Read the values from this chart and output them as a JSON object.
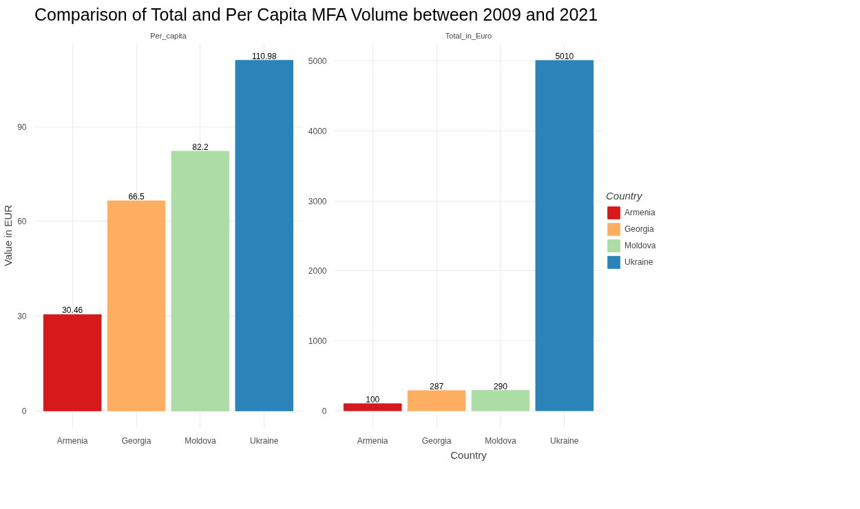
{
  "chart_data": [
    {
      "type": "bar",
      "title": "Comparison of Total and Per Capita MFA Volume between 2009 and 2021",
      "subtitle": "Per_capita",
      "ylabel": "Value in EUR",
      "categories": [
        "Armenia",
        "Georgia",
        "Moldova",
        "Ukraine"
      ],
      "series": [
        {
          "color": "#d7191c",
          "values": [
            30.46,
            null,
            null,
            null
          ]
        },
        {
          "color": "#fdae61",
          "values": [
            null,
            66.5,
            null,
            null
          ]
        },
        {
          "color": "#abdda4",
          "values": [
            null,
            null,
            82.2,
            null
          ]
        },
        {
          "color": "#2b83ba",
          "values": [
            null,
            null,
            null,
            110.98
          ]
        }
      ],
      "ylim": [
        -5.5,
        116.5
      ],
      "yticks": [
        0,
        30,
        60,
        90
      ],
      "grid": true,
      "data_labels": true
    },
    {
      "type": "bar",
      "subtitle": "Total_in_Euro",
      "xlabel": "Country",
      "legend_title": "Country",
      "legend": "right",
      "categories": [
        "Armenia",
        "Georgia",
        "Moldova",
        "Ukraine"
      ],
      "series": [
        {
          "name": "Armenia",
          "color": "#d7191c",
          "values": [
            100,
            null,
            null,
            null
          ]
        },
        {
          "name": "Georgia",
          "color": "#fdae61",
          "values": [
            null,
            287,
            null,
            null
          ]
        },
        {
          "name": "Moldova",
          "color": "#abdda4",
          "values": [
            null,
            null,
            290,
            null
          ]
        },
        {
          "name": "Ukraine",
          "color": "#2b83ba",
          "values": [
            null,
            null,
            null,
            5010
          ]
        }
      ],
      "ylim": [
        -250,
        5260
      ],
      "yticks": [
        0,
        1000,
        2000,
        3000,
        4000,
        5000
      ],
      "grid": true,
      "data_labels": true
    }
  ]
}
